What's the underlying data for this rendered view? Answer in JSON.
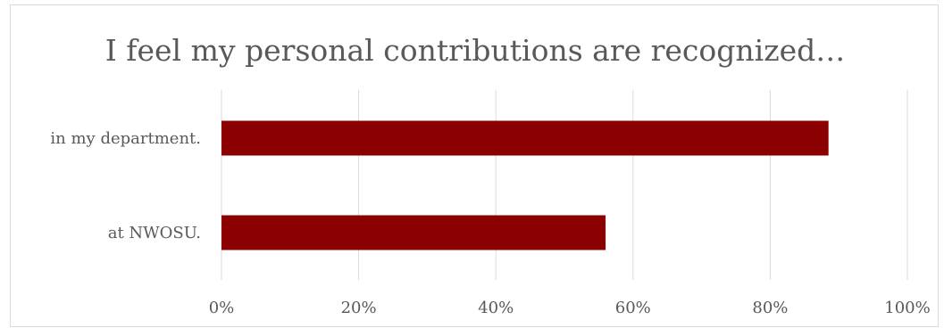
{
  "chart_data": {
    "type": "bar",
    "orientation": "horizontal",
    "title": "I feel my personal contributions are recognized…",
    "categories": [
      "in my department.",
      "at NWOSU."
    ],
    "values": [
      0.885,
      0.56
    ],
    "xlim": [
      0,
      1
    ],
    "xticks": [
      0,
      0.2,
      0.4,
      0.6,
      0.8,
      1.0
    ],
    "xtick_labels": [
      "0%",
      "20%",
      "40%",
      "60%",
      "80%",
      "100%"
    ],
    "xlabel": "",
    "ylabel": "",
    "grid": "vertical",
    "legend": "none",
    "bar_color": "#8b0000",
    "gridline_color": "#d9d9d9",
    "text_color": "#595959"
  }
}
